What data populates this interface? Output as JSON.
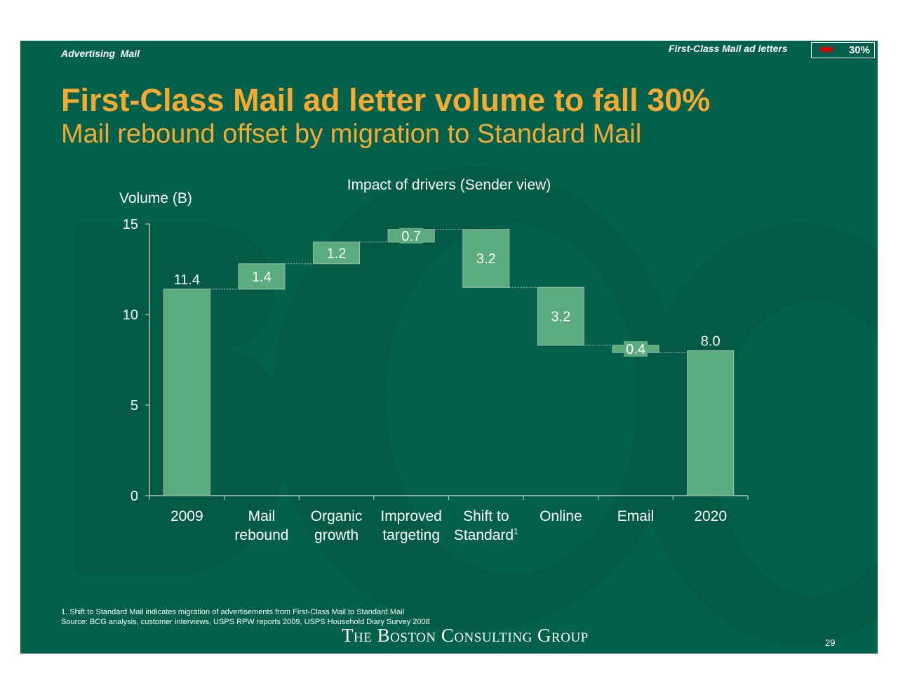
{
  "header": {
    "section_label": "Advertising  Mail",
    "tracker_label": "First-Class Mail ad letters",
    "tracker_value": "30%",
    "tracker_arrow_color": "#e00000"
  },
  "title": "First-Class Mail ad letter volume to fall 30%",
  "subtitle": "Mail rebound offset by migration to Standard Mail",
  "chart_data": {
    "type": "bar",
    "subtype": "waterfall",
    "title": "Impact of drivers (Sender view)",
    "ylabel": "Volume (B)",
    "xlabel": "",
    "ylim": [
      0,
      15
    ],
    "yticks": [
      0,
      5,
      10,
      15
    ],
    "categories": [
      [
        "2009"
      ],
      [
        "Mail",
        "rebound"
      ],
      [
        "Organic",
        "growth"
      ],
      [
        "Improved",
        "targeting"
      ],
      [
        "Shift to",
        "Standard"
      ],
      [
        "Online"
      ],
      [
        "Email"
      ],
      [
        "2020"
      ]
    ],
    "category_superscripts": [
      "",
      "",
      "",
      "",
      "1",
      "",
      "",
      ""
    ],
    "kinds": [
      "total",
      "increase",
      "increase",
      "increase",
      "decrease",
      "decrease",
      "decrease",
      "total"
    ],
    "values": [
      11.4,
      1.4,
      1.2,
      0.7,
      3.2,
      3.2,
      0.4,
      8.0
    ],
    "labels": [
      "11.4",
      "1.4",
      "1.2",
      "0.7",
      "3.2",
      "3.2",
      "0.4",
      "8.0"
    ],
    "bar_color": "#5aab7e",
    "grid": false,
    "legend": "none"
  },
  "footer": {
    "footnote": "1. Shift to Standard Mail indicates migration of advertisements from First-Class Mail to Standard Mail",
    "source": "Source: BCG analysis, customer interviews, USPS RPW reports 2009, USPS Household Diary Survey 2008",
    "logo": "The Boston Consulting Group",
    "page_number": "29"
  },
  "colors": {
    "background": "#03604a",
    "accent": "#f4a933",
    "bars": "#5aab7e"
  }
}
